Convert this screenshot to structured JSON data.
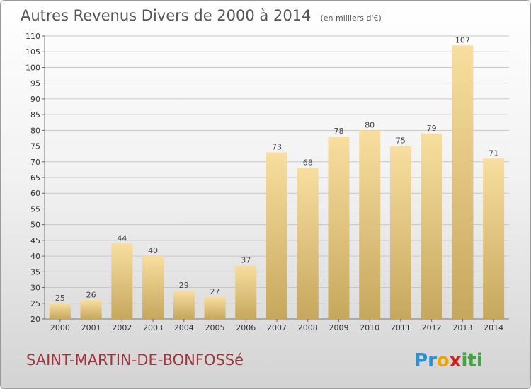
{
  "title": "Autres Revenus Divers de 2000 à 2014",
  "unit_note": "(en milliers d'€)",
  "commune": "SAINT-MARTIN-DE-BONFOSSé",
  "logo": {
    "text": "Proxiti",
    "letters": [
      "P",
      "r",
      "o",
      "x",
      "i",
      "t",
      "i"
    ],
    "colors": [
      "#2f8fd0",
      "#2f8fd0",
      "#f0a400",
      "#d02020",
      "#3aa83a",
      "#3aa83a",
      "#3aa83a"
    ]
  },
  "colors": {
    "bar_light": "#f7dc9c",
    "bar_dark": "#c8a95e",
    "grid": "#c8c8c8",
    "commune": "#a0343d"
  },
  "chart_data": {
    "type": "bar",
    "categories": [
      "2000",
      "2001",
      "2002",
      "2003",
      "2004",
      "2005",
      "2006",
      "2007",
      "2008",
      "2009",
      "2010",
      "2011",
      "2012",
      "2013",
      "2014"
    ],
    "values": [
      25,
      26,
      44,
      40,
      29,
      27,
      37,
      73,
      68,
      78,
      80,
      75,
      79,
      107,
      71
    ],
    "ylim": [
      20,
      110
    ],
    "yticks": [
      20,
      25,
      30,
      35,
      40,
      45,
      50,
      55,
      60,
      65,
      70,
      75,
      80,
      85,
      90,
      95,
      100,
      105,
      110
    ],
    "grid": true
  }
}
